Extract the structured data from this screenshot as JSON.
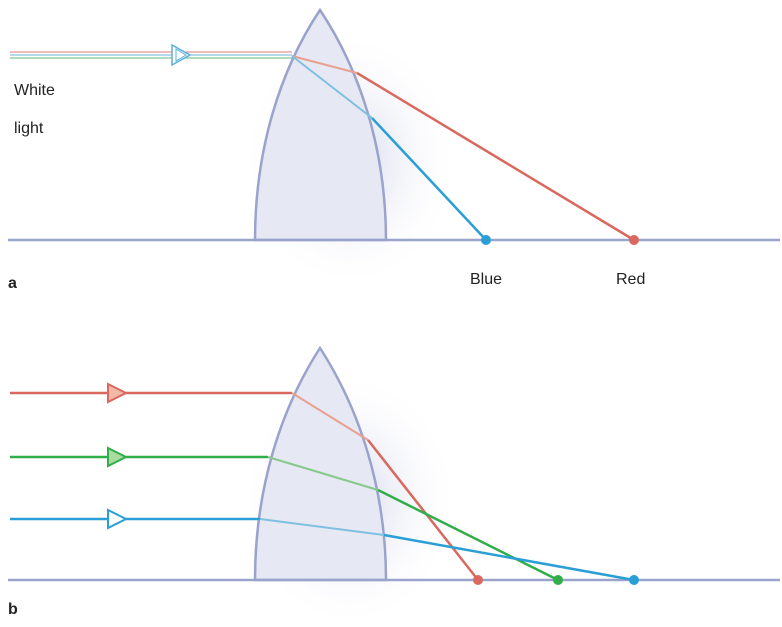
{
  "panels": [
    {
      "label": "a",
      "source_label": [
        "White",
        "light"
      ],
      "focus_labels": [
        "Blue",
        "Red"
      ]
    },
    {
      "label": "b"
    }
  ]
}
